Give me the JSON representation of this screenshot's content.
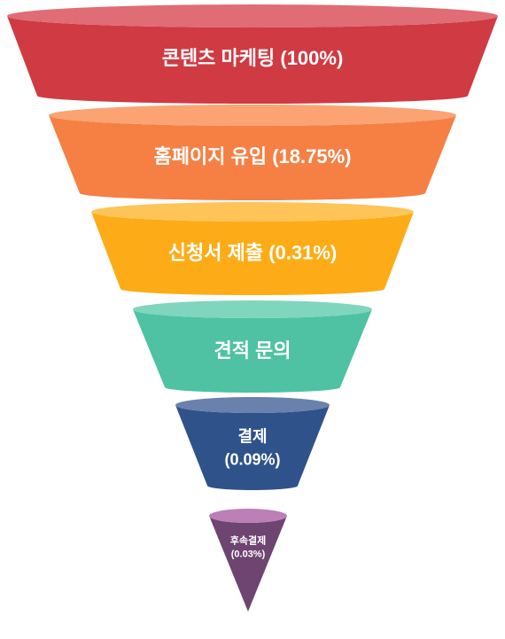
{
  "diagram": {
    "type": "funnel",
    "stages": [
      {
        "lines": [
          "콘텐츠 마케팅 (100%)"
        ],
        "color": "#d03a42",
        "top_color": "#e06c75"
      },
      {
        "lines": [
          "홈페이지 유입 (18.75%)"
        ],
        "color": "#f68044",
        "top_color": "#fba373"
      },
      {
        "lines": [
          "신청서 제출 (0.31%)"
        ],
        "color": "#fdac17",
        "top_color": "#fec458"
      },
      {
        "lines": [
          "견적 문의"
        ],
        "color": "#4ec2a2",
        "top_color": "#7fd6bd"
      },
      {
        "lines": [
          "결제",
          "(0.09%)"
        ],
        "color": "#30528b",
        "top_color": "#6a81ad"
      },
      {
        "lines": [
          "후속결제",
          "(0.03%)"
        ],
        "color": "#6e4470",
        "top_color": "#bc7fb7"
      }
    ]
  }
}
